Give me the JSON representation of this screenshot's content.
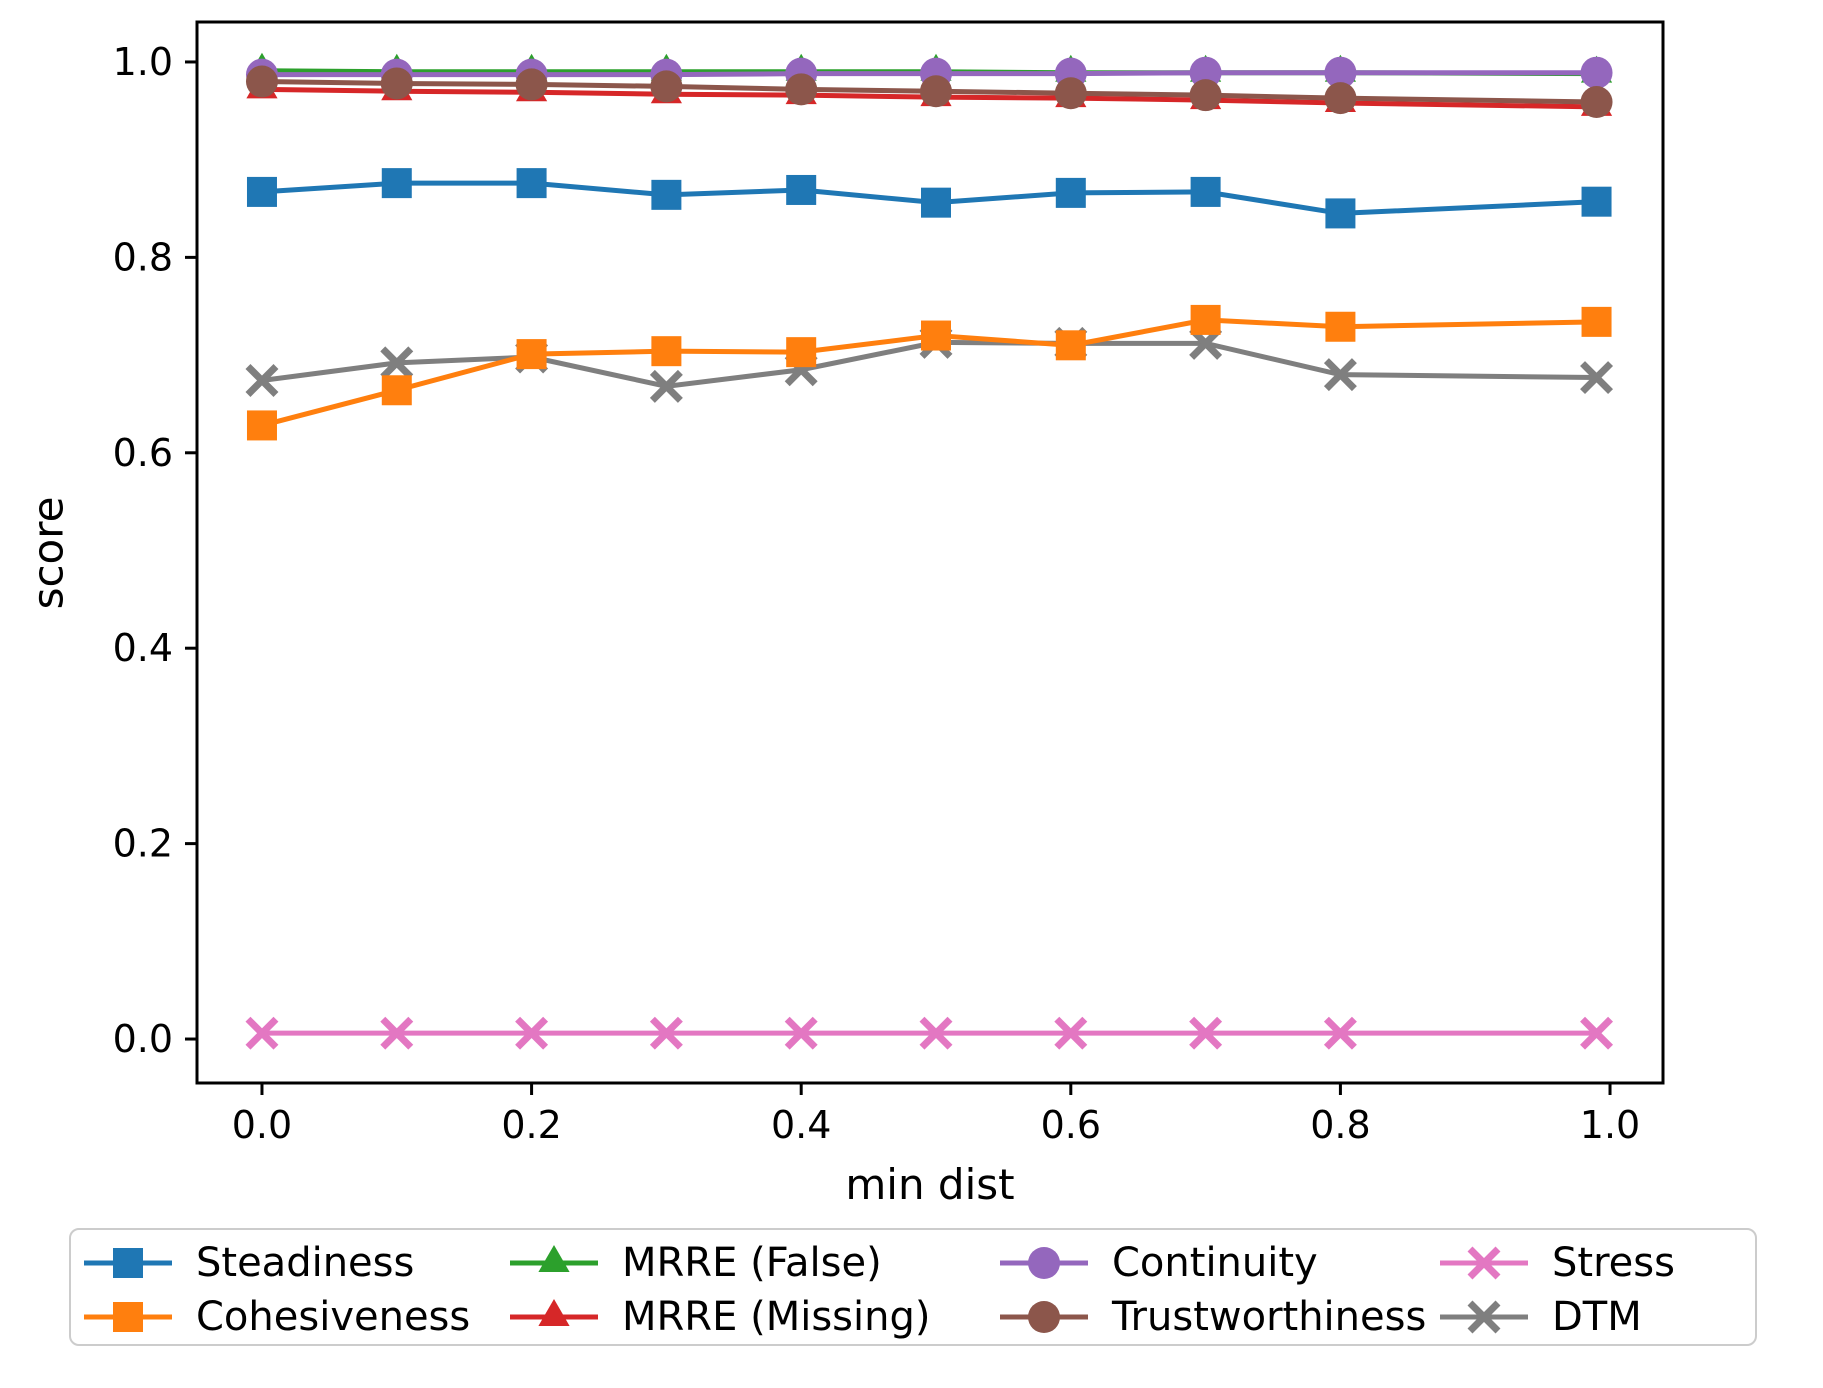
{
  "figure": {
    "background": "#ffffff"
  },
  "chart_data": {
    "type": "line",
    "title": "",
    "xlabel": "min dist",
    "ylabel": "score",
    "grid": false,
    "legend_position": "bottom",
    "legend_columns": 4,
    "x": [
      0.0,
      0.1,
      0.2,
      0.3,
      0.4,
      0.5,
      0.6,
      0.7,
      0.8,
      0.99
    ],
    "x_ticks": [
      0.0,
      0.2,
      0.4,
      0.6,
      0.8,
      1.0
    ],
    "x_tick_labels": [
      "0.0",
      "0.2",
      "0.4",
      "0.6",
      "0.8",
      "1.0"
    ],
    "y_ticks": [
      0.0,
      0.2,
      0.4,
      0.6,
      0.8,
      1.0
    ],
    "y_tick_labels": [
      "0.0",
      "0.2",
      "0.4",
      "0.6",
      "0.8",
      "1.0"
    ],
    "xlim": [
      -0.0482,
      1.0393
    ],
    "ylim": [
      -0.045,
      1.0409
    ],
    "series": [
      {
        "name": "Steadiness",
        "color": "#1f77b4",
        "marker": "square",
        "values": [
          0.867,
          0.876,
          0.876,
          0.864,
          0.869,
          0.856,
          0.866,
          0.867,
          0.845,
          0.857
        ]
      },
      {
        "name": "Cohesiveness",
        "color": "#ff7f0e",
        "marker": "square",
        "values": [
          0.628,
          0.664,
          0.701,
          0.704,
          0.703,
          0.72,
          0.71,
          0.736,
          0.729,
          0.734
        ]
      },
      {
        "name": "MRRE (False)",
        "color": "#2ca02c",
        "marker": "triangle",
        "values": [
          0.991,
          0.99,
          0.99,
          0.99,
          0.99,
          0.99,
          0.989,
          0.989,
          0.989,
          0.988
        ]
      },
      {
        "name": "MRRE (Missing)",
        "color": "#d62728",
        "marker": "triangle",
        "values": [
          0.972,
          0.97,
          0.969,
          0.967,
          0.966,
          0.964,
          0.963,
          0.961,
          0.958,
          0.954
        ]
      },
      {
        "name": "Continuity",
        "color": "#9467bd",
        "marker": "circle",
        "values": [
          0.987,
          0.987,
          0.987,
          0.987,
          0.988,
          0.988,
          0.988,
          0.989,
          0.989,
          0.989
        ]
      },
      {
        "name": "Trustworthiness",
        "color": "#8c564b",
        "marker": "circle",
        "values": [
          0.98,
          0.978,
          0.977,
          0.975,
          0.972,
          0.97,
          0.968,
          0.966,
          0.963,
          0.959
        ]
      },
      {
        "name": "Stress",
        "color": "#e377c2",
        "marker": "x",
        "values": [
          0.006,
          0.006,
          0.006,
          0.006,
          0.006,
          0.006,
          0.006,
          0.006,
          0.006,
          0.006
        ]
      },
      {
        "name": "DTM",
        "color": "#7f7f7f",
        "marker": "x",
        "values": [
          0.674,
          0.692,
          0.698,
          0.668,
          0.685,
          0.713,
          0.712,
          0.712,
          0.68,
          0.677
        ]
      }
    ],
    "draw_order": [
      2,
      3,
      4,
      5,
      7,
      1,
      0,
      6
    ],
    "legend_column_series": [
      [
        0,
        1
      ],
      [
        2,
        3
      ],
      [
        4,
        5
      ],
      [
        6,
        7
      ]
    ]
  }
}
